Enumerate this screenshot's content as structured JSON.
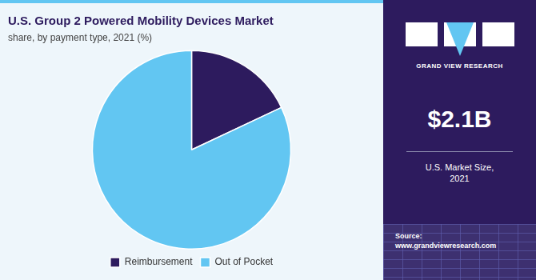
{
  "chart_data": {
    "type": "pie",
    "title": "U.S. Group 2 Powered Mobility Devices Market",
    "subtitle": "share, by payment type, 2021 (%)",
    "categories": [
      "Reimbursement",
      "Out of Pocket"
    ],
    "values": [
      18,
      82
    ],
    "colors": [
      "#2d1b5e",
      "#62c6f2"
    ],
    "legend": "bottom",
    "annotations": [
      "GRAND VIEW RESEARCH",
      "$2.1B",
      "U.S. Market Size,\n2021",
      "Source:\nwww.grandviewresearch.com"
    ]
  }
}
